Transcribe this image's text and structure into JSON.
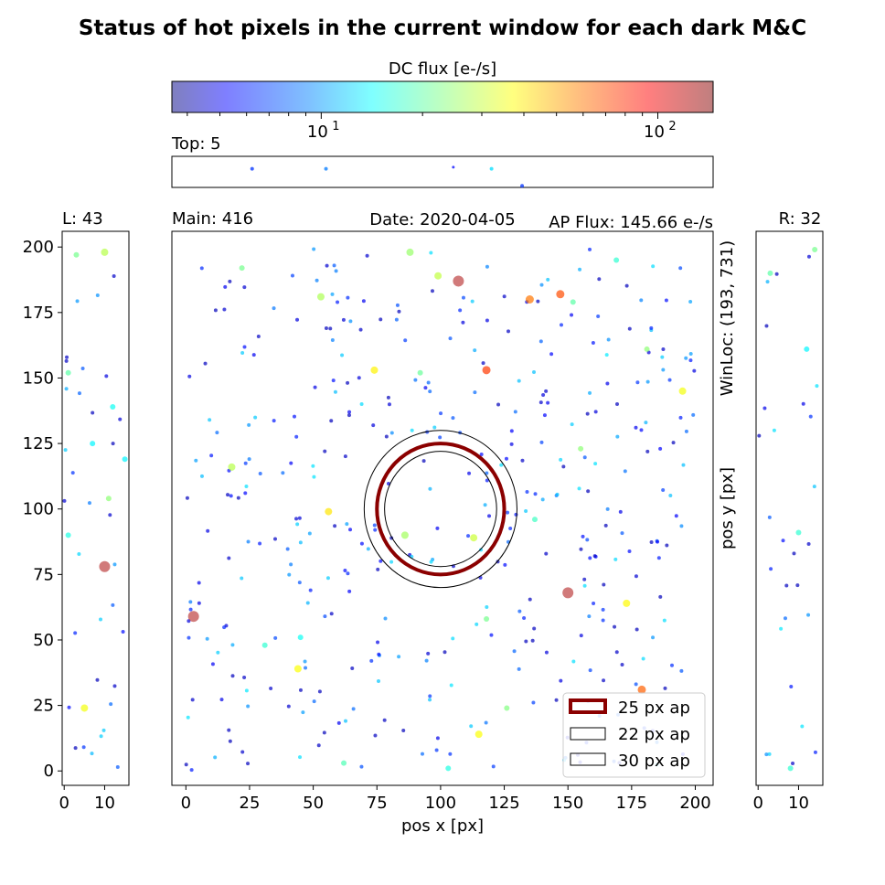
{
  "chart_data": {
    "type": "scatter",
    "title": "Status of hot pixels in the current window for each dark M&C",
    "colorbar": {
      "label": "DC flux [e-/s]",
      "scale": "log",
      "range": [
        3.6,
        146
      ],
      "colormap": "jet",
      "ticks": [
        {
          "value": 10,
          "base": "10",
          "exp": "1"
        },
        {
          "value": 100,
          "base": "10",
          "exp": "2"
        }
      ]
    },
    "main": {
      "label": "Main: 416",
      "date": "Date: 2020-04-05",
      "ap_flux": "AP Flux: 145.66 e-/s",
      "winloc": "WinLoc: (193, 731)",
      "xlabel": "pos x [px]",
      "ylabel": "pos y [px]",
      "xlim": [
        -5.5,
        207
      ],
      "ylim": [
        -5.5,
        206
      ],
      "xticks": [
        0,
        25,
        50,
        75,
        100,
        125,
        150,
        175,
        200
      ],
      "yticks": [
        0,
        25,
        50,
        75,
        100,
        125,
        150,
        175,
        200
      ],
      "center": [
        100,
        100
      ],
      "apertures": [
        {
          "name": "25 px ap",
          "radius": 25,
          "color": "#8b0000"
        },
        {
          "name": "22 px ap",
          "radius": 22,
          "color": "#000000"
        },
        {
          "name": "30 px ap",
          "radius": 30,
          "color": "#000000"
        }
      ],
      "bright_points": [
        {
          "x": 107,
          "y": 187,
          "flux": 140
        },
        {
          "x": 3,
          "y": 59,
          "flux": 130
        },
        {
          "x": 150,
          "y": 68,
          "flux": 125
        },
        {
          "x": 118,
          "y": 153,
          "flux": 75
        },
        {
          "x": 147,
          "y": 182,
          "flux": 70
        },
        {
          "x": 135,
          "y": 180,
          "flux": 60
        },
        {
          "x": 179,
          "y": 31,
          "flux": 65
        },
        {
          "x": 56,
          "y": 99,
          "flux": 40
        },
        {
          "x": 74,
          "y": 153,
          "flux": 38
        },
        {
          "x": 115,
          "y": 14,
          "flux": 36
        },
        {
          "x": 195,
          "y": 145,
          "flux": 35
        },
        {
          "x": 173,
          "y": 64,
          "flux": 37
        },
        {
          "x": 44,
          "y": 39,
          "flux": 36
        },
        {
          "x": 113,
          "y": 89,
          "flux": 30
        },
        {
          "x": 86,
          "y": 90,
          "flux": 26
        },
        {
          "x": 18,
          "y": 116,
          "flux": 28
        },
        {
          "x": 53,
          "y": 181,
          "flux": 27
        },
        {
          "x": 99,
          "y": 189,
          "flux": 29
        },
        {
          "x": 152,
          "y": 179,
          "flux": 20
        },
        {
          "x": 118,
          "y": 58,
          "flux": 22
        },
        {
          "x": 137,
          "y": 96,
          "flux": 18
        },
        {
          "x": 155,
          "y": 123,
          "flux": 24
        },
        {
          "x": 92,
          "y": 152,
          "flux": 21
        },
        {
          "x": 62,
          "y": 3,
          "flux": 19
        },
        {
          "x": 169,
          "y": 195,
          "flux": 17
        },
        {
          "x": 126,
          "y": 24,
          "flux": 23
        },
        {
          "x": 103,
          "y": 1,
          "flux": 16
        },
        {
          "x": 88,
          "y": 198,
          "flux": 25
        },
        {
          "x": 22,
          "y": 192,
          "flux": 22
        },
        {
          "x": 31,
          "y": 48,
          "flux": 17
        },
        {
          "x": 181,
          "y": 161,
          "flux": 24
        },
        {
          "x": 45,
          "y": 51,
          "flux": 15
        }
      ],
      "count_points": 416
    },
    "top": {
      "label": "Top: 5",
      "points": [
        {
          "x": 26,
          "y": 0.6,
          "flux": 6
        },
        {
          "x": 55,
          "y": 0.6,
          "flux": 8
        },
        {
          "x": 105,
          "y": 0.65,
          "flux": 5
        },
        {
          "x": 120,
          "y": 0.6,
          "flux": 12
        },
        {
          "x": 132,
          "y": 0.05,
          "flux": 6
        }
      ]
    },
    "left": {
      "label": "L: 43",
      "xlim": [
        -0.5,
        16
      ],
      "xticks": [
        0,
        10
      ],
      "bright_points": [
        {
          "x": 10,
          "y": 78,
          "flux": 130
        },
        {
          "x": 5,
          "y": 24,
          "flux": 35
        },
        {
          "x": 10,
          "y": 198,
          "flux": 28
        },
        {
          "x": 11,
          "y": 104,
          "flux": 24
        },
        {
          "x": 3,
          "y": 197,
          "flux": 22
        },
        {
          "x": 1,
          "y": 152,
          "flux": 20
        },
        {
          "x": 1,
          "y": 90,
          "flux": 16
        },
        {
          "x": 7,
          "y": 125,
          "flux": 14
        },
        {
          "x": 15,
          "y": 119,
          "flux": 14
        },
        {
          "x": 12,
          "y": 139,
          "flux": 15
        }
      ],
      "count_points": 43
    },
    "right": {
      "label": "R: 32",
      "xlim": [
        -0.5,
        16
      ],
      "xticks": [
        0,
        10
      ],
      "bright_points": [
        {
          "x": 14,
          "y": 199,
          "flux": 22
        },
        {
          "x": 3,
          "y": 190,
          "flux": 20
        },
        {
          "x": 8,
          "y": 1,
          "flux": 17
        },
        {
          "x": 10,
          "y": 91,
          "flux": 17
        },
        {
          "x": 12,
          "y": 161,
          "flux": 14
        },
        {
          "x": 4,
          "y": 130,
          "flux": 13
        }
      ],
      "count_points": 32
    }
  }
}
